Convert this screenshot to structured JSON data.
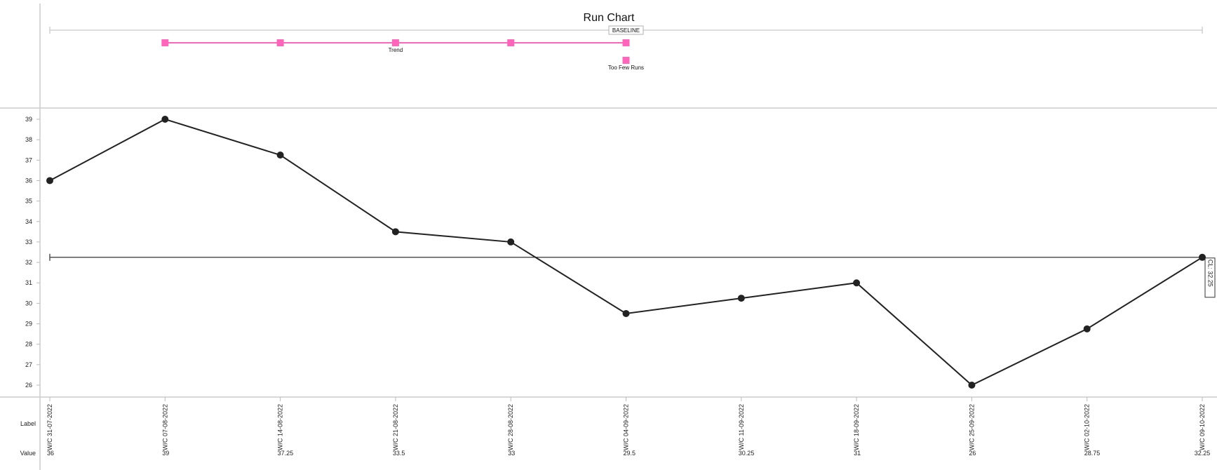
{
  "chart_data": {
    "type": "line",
    "title": "Run Chart",
    "x": [
      "W/C 31-07-2022",
      "W/C 07-08-2022",
      "W/C 14-08-2022",
      "W/C 21-08-2022",
      "W/C 28-08-2022",
      "W/C 04-09-2022",
      "W/C 11-09-2022",
      "W/C 18-09-2022",
      "W/C 25-09-2022",
      "W/C 02-10-2022",
      "W/C 09-10-2022"
    ],
    "series": [
      {
        "values": [
          36,
          39,
          37.25,
          33.5,
          33,
          29.5,
          30.25,
          31,
          26,
          28.75,
          32.25
        ]
      }
    ],
    "value_labels": [
      "36",
      "39",
      "37.25",
      "33.5",
      "33",
      "29.5",
      "30.25",
      "31",
      "26",
      "28.75",
      "32.25"
    ],
    "ylim": [
      25.5,
      39.5
    ],
    "yticks": [
      26,
      27,
      28,
      29,
      30,
      31,
      32,
      33,
      34,
      35,
      36,
      37,
      38,
      39
    ],
    "center_line": {
      "value": 32.25,
      "label": "CL: 32.25"
    },
    "baseline": {
      "label": "BASELINE"
    },
    "rules": [
      {
        "label": "Trend",
        "start_index": 1,
        "end_index": 5,
        "row": 0
      },
      {
        "label": "Too Few Runs",
        "start_index": 5,
        "end_index": 5,
        "row": 1
      }
    ],
    "table_headers": {
      "label": "Label",
      "value": "Value"
    },
    "colors": {
      "line": "#222222",
      "rule": "#ff66bb",
      "axis": "#cccccc",
      "center": "#555555"
    },
    "grid": false
  }
}
